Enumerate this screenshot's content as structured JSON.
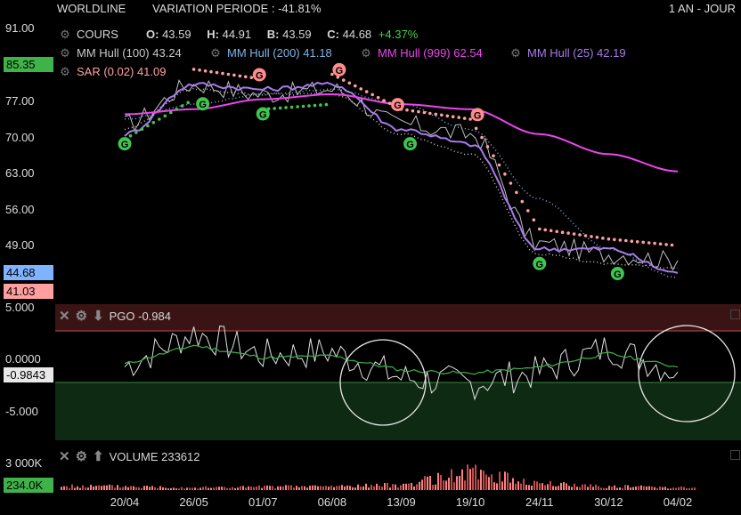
{
  "header": {
    "symbol": "WORLDLINE",
    "variation": "VARIATION PERIODE : -41.81%",
    "period": "1 AN - JOUR"
  },
  "legend": {
    "cours_label": "COURS",
    "o_label": "O:",
    "o_value": "43.59",
    "h_label": "H:",
    "h_value": "44.91",
    "b_label": "B:",
    "b_value": "43.59",
    "c_label": "C:",
    "c_value": "44.68",
    "change": "+4.37%",
    "indicators": [
      {
        "label": "MM Hull (100)",
        "value": "43.24",
        "color": "#c9c9c9"
      },
      {
        "label": "MM Hull (200)",
        "value": "41.18",
        "color": "#7fb3e6"
      },
      {
        "label": "MM Hull (999)",
        "value": "62.54",
        "color": "#ee44ee"
      },
      {
        "label": "MM Hull (25)",
        "value": "42.19",
        "color": "#a97bea"
      }
    ],
    "sar_label": "SAR (0.02)",
    "sar_value": "41.09"
  },
  "price_axis": {
    "ticks": [
      "91.00",
      "77.00",
      "70.00",
      "63.00",
      "56.00",
      "49.00"
    ],
    "tag_high": "85.35",
    "tag_current": "44.68",
    "tag_low": "41.03"
  },
  "pgo": {
    "title": "PGO -0.984",
    "ticks": [
      "5.000",
      "0.0000",
      "-5.000"
    ],
    "tag_current": "-0.9843"
  },
  "volume": {
    "title": "VOLUME 233612",
    "tick_top": "3 000K",
    "tag_current": "234.0K"
  },
  "x_axis": [
    "20/04",
    "26/05",
    "01/07",
    "06/08",
    "13/09",
    "19/10",
    "24/11",
    "30/12",
    "04/02"
  ],
  "colors": {
    "price": "#bfbfbf",
    "hull100": "#c9c9c9",
    "hull200": "#7fb3e6",
    "hull999": "#ee44ee",
    "hull25": "#a97bea",
    "sar_up": "#44c64a",
    "sar_down": "#ffa0a0",
    "pgo_band_up": "#3a1414",
    "pgo_band_down": "#0f2a12",
    "volume_bar": "#ff8080",
    "tag_high": "#3fb24a",
    "tag_current": "#7fb3ff",
    "tag_low": "#ffa0a0"
  },
  "chart_data": {
    "type": "line",
    "x": [
      "20/04",
      "26/05",
      "01/07",
      "06/08",
      "13/09",
      "19/10",
      "24/11",
      "30/12",
      "04/02"
    ],
    "price_series": [
      {
        "name": "COURS",
        "values": [
          72,
          80,
          78,
          79,
          72,
          70,
          48,
          46,
          44.68
        ]
      },
      {
        "name": "MM Hull (25)",
        "values": [
          70,
          80,
          79,
          80,
          71,
          68,
          47,
          47,
          42.19
        ]
      },
      {
        "name": "MM Hull (100)",
        "values": [
          71,
          79,
          78,
          78,
          70,
          66,
          46,
          44,
          43.24
        ]
      },
      {
        "name": "MM Hull (200)",
        "values": [
          73,
          76,
          78,
          79,
          76,
          71,
          57,
          47,
          41.18
        ]
      },
      {
        "name": "MM Hull (999)",
        "values": [
          74,
          75,
          77,
          78,
          76,
          75,
          70,
          66,
          62.54
        ]
      }
    ],
    "markers": {
      "buy": [
        "20/04",
        "26/05",
        "01/07",
        "13/09",
        "24/11",
        "30/12"
      ],
      "sell": [
        "01/07",
        "06/08",
        "13/09",
        "19/10"
      ]
    },
    "pgo": {
      "name": "PGO",
      "ylim": [
        -7,
        5
      ],
      "values": [
        -0.5,
        2.5,
        0.5,
        0.8,
        -1.5,
        -2.0,
        -1.0,
        1.2,
        -0.984
      ]
    },
    "volume": {
      "name": "VOLUME",
      "ylim": [
        0,
        3000
      ],
      "values": [
        300,
        200,
        250,
        300,
        400,
        1400,
        500,
        300,
        234
      ]
    },
    "ylim": [
      38,
      91
    ]
  }
}
